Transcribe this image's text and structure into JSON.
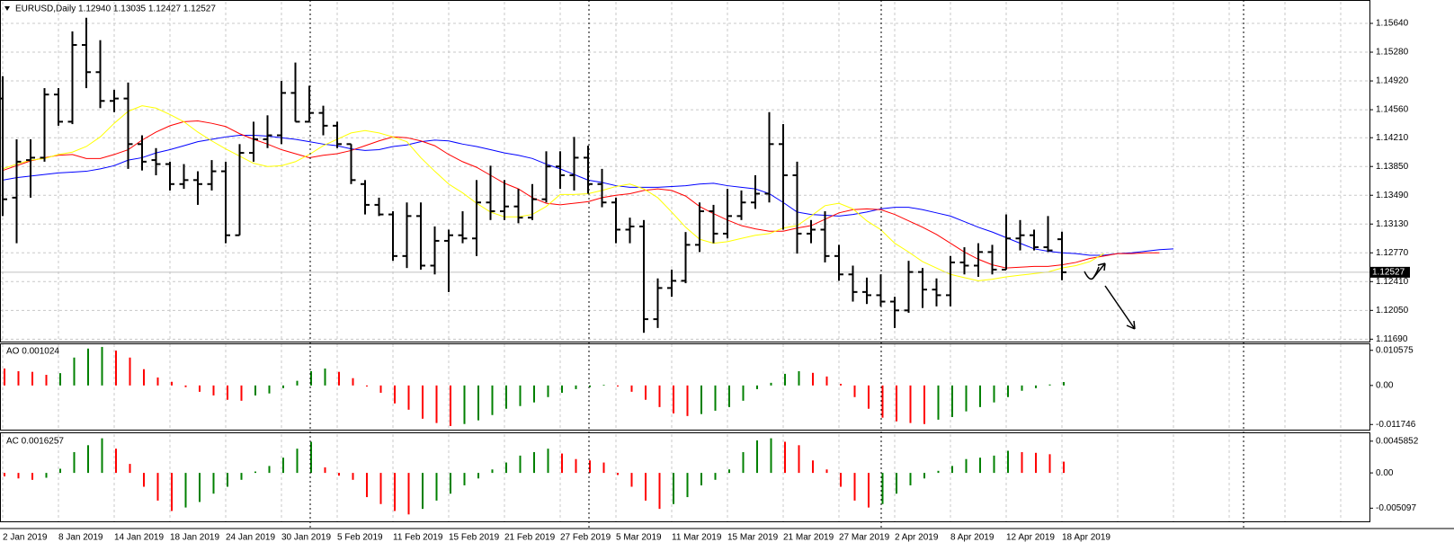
{
  "chart_data": [
    {
      "type": "ohlc",
      "title": "EURUSD,Daily  1.12940 1.13035 1.12427 1.12527",
      "categories": [
        "2 Jan 2019",
        null,
        null,
        null,
        "8 Jan 2019",
        null,
        null,
        null,
        "14 Jan 2019",
        null,
        null,
        null,
        "18 Jan 2019",
        null,
        null,
        null,
        "24 Jan 2019",
        null,
        null,
        null,
        "30 Jan 2019",
        null,
        null,
        null,
        "5 Feb 2019",
        null,
        null,
        null,
        "11 Feb 2019",
        null,
        null,
        null,
        "15 Feb 2019",
        null,
        null,
        null,
        "21 Feb 2019",
        null,
        null,
        null,
        "27 Feb 2019",
        null,
        null,
        null,
        "5 Mar 2019",
        null,
        null,
        null,
        "11 Mar 2019",
        null,
        null,
        null,
        "15 Mar 2019",
        null,
        null,
        null,
        "21 Mar 2019",
        null,
        null,
        null,
        "27 Mar 2019",
        null,
        null,
        null,
        "2 Apr 2019",
        null,
        null,
        null,
        "8 Apr 2019",
        null,
        null,
        null,
        "12 Apr 2019",
        null,
        null,
        null,
        "18 Apr 2019",
        null,
        null,
        null,
        null,
        null,
        null,
        null,
        null
      ],
      "open": [
        1.147,
        1.1346,
        1.1393,
        1.1396,
        1.1475,
        1.1441,
        1.1537,
        1.1503,
        1.1467,
        1.147,
        1.1413,
        1.1393,
        1.1388,
        1.1363,
        1.1368,
        1.1363,
        1.1379,
        1.1299,
        1.1402,
        1.1419,
        1.1424,
        1.1477,
        1.1441,
        1.1452,
        1.1436,
        1.1413,
        1.1363,
        1.1337,
        1.1325,
        1.1273,
        1.1323,
        1.1261,
        1.1292,
        1.1299,
        1.1295,
        1.134,
        1.1329,
        1.1335,
        1.1321,
        1.1344,
        1.1385,
        1.1374,
        1.1396,
        1.1363,
        1.134,
        1.1306,
        1.131,
        1.1194,
        1.1233,
        1.1242,
        1.1287,
        1.1329,
        1.1301,
        1.1323,
        1.134,
        1.1351,
        1.1413,
        1.1374,
        1.1301,
        1.1306,
        1.1273,
        1.125,
        1.1228,
        1.1224,
        1.1216,
        1.1205,
        1.1253,
        1.1231,
        1.1224,
        1.1265,
        1.1261,
        1.1278,
        1.1256,
        1.1295,
        1.1299,
        1.1284,
        1.1294,
        null,
        null,
        null,
        null,
        null,
        null,
        null,
        null
      ],
      "high": [
        1.1498,
        1.1419,
        1.1419,
        1.1483,
        1.1483,
        1.1554,
        1.1571,
        1.1543,
        1.1481,
        1.149,
        1.1424,
        1.1408,
        1.1391,
        1.1388,
        1.1379,
        1.1393,
        1.1391,
        1.1413,
        1.1441,
        1.1449,
        1.1492,
        1.1515,
        1.1486,
        1.1461,
        1.1441,
        1.1413,
        1.1368,
        1.1346,
        1.1329,
        1.134,
        1.134,
        1.131,
        1.1306,
        1.1329,
        1.1368,
        1.1386,
        1.1368,
        1.1357,
        1.1363,
        1.1404,
        1.1404,
        1.1422,
        1.1411,
        1.1382,
        1.1346,
        1.1321,
        1.1318,
        1.1245,
        1.1256,
        1.1303,
        1.134,
        1.1337,
        1.1357,
        1.1355,
        1.1374,
        1.1453,
        1.1438,
        1.1391,
        1.1318,
        1.1329,
        1.1287,
        1.1261,
        1.1246,
        1.125,
        1.1222,
        1.1267,
        1.1258,
        1.1245,
        1.1273,
        1.1284,
        1.1289,
        1.1287,
        1.1325,
        1.1318,
        1.1306,
        1.1323,
        1.13035,
        null,
        null,
        null,
        null,
        null,
        null,
        null,
        null
      ],
      "low": [
        1.1323,
        1.1289,
        1.1346,
        1.1391,
        1.1436,
        1.1438,
        1.1483,
        1.1458,
        1.1453,
        1.1382,
        1.138,
        1.1374,
        1.1355,
        1.1357,
        1.1337,
        1.1355,
        1.1289,
        1.1299,
        1.1391,
        1.1408,
        1.1413,
        1.1441,
        1.1441,
        1.1424,
        1.1408,
        1.1363,
        1.1325,
        1.1323,
        1.1267,
        1.1258,
        1.1256,
        1.125,
        1.1228,
        1.1289,
        1.1273,
        1.1318,
        1.1318,
        1.1314,
        1.1318,
        1.134,
        1.1357,
        1.1355,
        1.1351,
        1.1334,
        1.1289,
        1.1289,
        1.1177,
        1.1183,
        1.1222,
        1.1239,
        1.1278,
        1.1289,
        1.1295,
        1.1318,
        1.1332,
        1.134,
        1.1306,
        1.1276,
        1.1289,
        1.1265,
        1.1242,
        1.1216,
        1.1213,
        1.121,
        1.1183,
        1.1202,
        1.1208,
        1.121,
        1.121,
        1.125,
        1.1247,
        1.125,
        1.1256,
        1.128,
        1.128,
        1.1278,
        1.12427,
        null,
        null,
        null,
        null,
        null,
        null,
        null,
        null
      ],
      "close": [
        1.1344,
        1.1391,
        1.1396,
        1.1475,
        1.1441,
        1.1537,
        1.1503,
        1.1467,
        1.147,
        1.1413,
        1.1391,
        1.1388,
        1.1363,
        1.1368,
        1.1363,
        1.1379,
        1.1299,
        1.1402,
        1.1419,
        1.1424,
        1.1477,
        1.1441,
        1.1452,
        1.1436,
        1.1413,
        1.1368,
        1.1337,
        1.1325,
        1.1273,
        1.1323,
        1.1261,
        1.1292,
        1.1299,
        1.1295,
        1.134,
        1.1329,
        1.1335,
        1.1321,
        1.1344,
        1.1385,
        1.1374,
        1.1396,
        1.1363,
        1.134,
        1.1306,
        1.131,
        1.1194,
        1.1233,
        1.1242,
        1.1287,
        1.1329,
        1.1301,
        1.1323,
        1.134,
        1.1351,
        1.1413,
        1.1374,
        1.1301,
        1.1306,
        1.1273,
        1.125,
        1.1228,
        1.1224,
        1.1216,
        1.1205,
        1.1253,
        1.1231,
        1.1224,
        1.1265,
        1.1261,
        1.1278,
        1.1256,
        1.1295,
        1.1299,
        1.1284,
        1.128,
        1.12527,
        null,
        null,
        null,
        null,
        null,
        null,
        null,
        null
      ],
      "color": "#000000",
      "series": [
        {
          "color": "#0000ff",
          "values": [
            1.1368,
            1.1371,
            1.1373,
            1.1375,
            1.1377,
            1.1378,
            1.1379,
            1.1382,
            1.1386,
            1.1393,
            1.1396,
            1.1402,
            1.1406,
            1.1411,
            1.1416,
            1.1419,
            1.1422,
            1.1424,
            1.1424,
            1.1423,
            1.1421,
            1.1419,
            1.1416,
            1.1413,
            1.1411,
            1.1407,
            1.1405,
            1.1406,
            1.141,
            1.1412,
            1.1416,
            1.1418,
            1.1417,
            1.1413,
            1.141,
            1.1406,
            1.1402,
            1.1399,
            1.1395,
            1.1388,
            1.1382,
            1.1375,
            1.1368,
            1.1365,
            1.1361,
            1.1359,
            1.1359,
            1.1359,
            1.136,
            1.1361,
            1.1363,
            1.1364,
            1.1361,
            1.1359,
            1.1357,
            1.1351,
            1.134,
            1.1328,
            1.1325,
            1.1324,
            1.1323,
            1.1325,
            1.1328,
            1.1332,
            1.1334,
            1.1334,
            1.1331,
            1.1327,
            1.1323,
            1.1316,
            1.1309,
            1.1303,
            1.1296,
            1.1289,
            1.1282,
            1.1279,
            1.1277,
            1.1276,
            1.1274,
            1.1274,
            1.1276,
            1.1277,
            1.1279,
            1.1281,
            1.1282
          ]
        },
        {
          "color": "#ff0000",
          "values": [
            1.138,
            1.1386,
            1.1392,
            1.1396,
            1.1399,
            1.14,
            1.1395,
            1.1395,
            1.14,
            1.1406,
            1.1418,
            1.1428,
            1.1436,
            1.1441,
            1.1442,
            1.1439,
            1.1435,
            1.1426,
            1.1419,
            1.1413,
            1.1406,
            1.1401,
            1.1396,
            1.1399,
            1.1401,
            1.1405,
            1.1411,
            1.1417,
            1.1422,
            1.1421,
            1.1417,
            1.1411,
            1.14,
            1.1391,
            1.1384,
            1.1374,
            1.1364,
            1.1357,
            1.1346,
            1.1339,
            1.1337,
            1.1339,
            1.1341,
            1.1346,
            1.1349,
            1.1351,
            1.1355,
            1.1357,
            1.1355,
            1.1348,
            1.1335,
            1.1326,
            1.1318,
            1.1311,
            1.1307,
            1.1304,
            1.1304,
            1.1308,
            1.1311,
            1.1319,
            1.1327,
            1.1331,
            1.1332,
            1.1331,
            1.1325,
            1.1317,
            1.1309,
            1.13,
            1.1289,
            1.1278,
            1.1269,
            1.1262,
            1.1258,
            1.1259,
            1.126,
            1.126,
            1.1262,
            1.1265,
            1.127,
            1.1273,
            1.1276,
            1.1276,
            1.1277,
            1.1277,
            null
          ]
        },
        {
          "color": "#ffff00",
          "values": [
            1.1382,
            1.1388,
            1.1393,
            1.1395,
            1.14,
            1.1403,
            1.141,
            1.1422,
            1.1439,
            1.1454,
            1.1461,
            1.1458,
            1.145,
            1.1441,
            1.1428,
            1.1417,
            1.1407,
            1.1398,
            1.1389,
            1.1385,
            1.1386,
            1.1391,
            1.14,
            1.1411,
            1.1419,
            1.1427,
            1.143,
            1.1427,
            1.1422,
            1.1416,
            1.1396,
            1.1379,
            1.1363,
            1.1352,
            1.1339,
            1.1328,
            1.1322,
            1.1322,
            1.1325,
            1.1335,
            1.135,
            1.135,
            1.1351,
            1.1355,
            1.136,
            1.1363,
            1.1357,
            1.1346,
            1.1328,
            1.1309,
            1.1294,
            1.1289,
            1.1291,
            1.1295,
            1.1299,
            1.1301,
            1.1308,
            1.1311,
            1.1323,
            1.1336,
            1.1339,
            1.1332,
            1.1317,
            1.1306,
            1.1289,
            1.1278,
            1.1266,
            1.1258,
            1.125,
            1.1246,
            1.1242,
            1.1244,
            1.1247,
            1.1249,
            1.1251,
            1.1253,
            1.1258,
            1.1261,
            1.1266,
            1.1276,
            null,
            null,
            null,
            null,
            null
          ]
        }
      ],
      "last_price": {
        "value": 1.12527,
        "label": "1.12527"
      },
      "ylim": [
        1.1166,
        1.1591
      ],
      "yticks": [
        {
          "value": 1.1564,
          "label": "1.15640"
        },
        {
          "value": 1.1528,
          "label": "1.15280"
        },
        {
          "value": 1.1492,
          "label": "1.14920"
        },
        {
          "value": 1.1456,
          "label": "1.14560"
        },
        {
          "value": 1.1421,
          "label": "1.14210"
        },
        {
          "value": 1.1385,
          "label": "1.13850"
        },
        {
          "value": 1.1349,
          "label": "1.13490"
        },
        {
          "value": 1.1313,
          "label": "1.13130"
        },
        {
          "value": 1.1277,
          "label": "1.12770"
        },
        {
          "value": 1.1241,
          "label": "1.12410"
        },
        {
          "value": 1.1205,
          "label": "1.12050"
        },
        {
          "value": 1.1169,
          "label": "1.11690"
        }
      ],
      "grid": true
    },
    {
      "type": "bar",
      "title": "AO 0.001024",
      "values": [
        0.0051,
        0.0043,
        0.0041,
        0.0032,
        0.0037,
        0.0084,
        0.0111,
        0.0116,
        0.0105,
        0.0084,
        0.0049,
        0.0024,
        0.0011,
        -0.0005,
        -0.0019,
        -0.003,
        -0.0043,
        -0.0046,
        -0.003,
        -0.0024,
        -0.0008,
        0.0014,
        0.0043,
        0.0051,
        0.0041,
        0.0022,
        -0.0003,
        -0.0022,
        -0.0054,
        -0.0073,
        -0.01,
        -0.0113,
        -0.0122,
        -0.0116,
        -0.0105,
        -0.0089,
        -0.007,
        -0.0062,
        -0.0051,
        -0.0035,
        -0.0022,
        -0.0011,
        -0.0005,
        0.0002,
        -0.0003,
        -0.0019,
        -0.0043,
        -0.0065,
        -0.0084,
        -0.0092,
        -0.0086,
        -0.0076,
        -0.0065,
        -0.0046,
        -0.0011,
        0.0008,
        0.0035,
        0.0043,
        0.0038,
        0.0027,
        0.0005,
        -0.0035,
        -0.007,
        -0.0097,
        -0.0108,
        -0.0113,
        -0.0116,
        -0.0103,
        -0.0095,
        -0.0078,
        -0.0065,
        -0.0051,
        -0.0035,
        -0.0016,
        -0.0008,
        0.0003,
        0.001024
      ],
      "up_color": "#008000",
      "down_color": "#ff0000",
      "ylim": [
        -0.0133,
        0.0124
      ],
      "yticks": [
        0.010575,
        {
          "value": 0,
          "label": "0.00"
        },
        -0.011746
      ]
    },
    {
      "type": "bar",
      "title": "AC 0.0016257",
      "values": [
        -0.0005,
        -0.0008,
        -0.001,
        -0.0007,
        0.0006,
        0.003,
        0.004,
        0.005,
        0.0035,
        0.0013,
        -0.002,
        -0.004,
        -0.0055,
        -0.005,
        -0.0042,
        -0.003,
        -0.002,
        -0.001,
        0.0002,
        0.001,
        0.0022,
        0.0035,
        0.0045,
        0.0008,
        -0.0004,
        -0.001,
        -0.0035,
        -0.0045,
        -0.0055,
        -0.006,
        -0.0052,
        -0.004,
        -0.003,
        -0.0018,
        -0.0008,
        0.0005,
        0.0015,
        0.0025,
        0.003,
        0.0035,
        0.0028,
        0.002,
        0.0018,
        0.0015,
        -0.0003,
        -0.002,
        -0.004,
        -0.0052,
        -0.0045,
        -0.0035,
        -0.0018,
        -0.001,
        0.0005,
        0.003,
        0.0047,
        0.005,
        0.0045,
        0.004,
        0.0018,
        0.0005,
        -0.002,
        -0.004,
        -0.005,
        -0.0045,
        -0.003,
        -0.0018,
        -0.0008,
        0.0003,
        0.001,
        0.002,
        0.0022,
        0.0025,
        0.0032,
        0.003,
        0.0029,
        0.0027,
        0.0016257
      ],
      "up_color": "#008000",
      "down_color": "#ff0000",
      "ylim": [
        -0.007,
        0.0056
      ],
      "yticks": [
        0.0045852,
        {
          "value": 0,
          "label": "0.00"
        },
        -0.005097
      ]
    }
  ]
}
